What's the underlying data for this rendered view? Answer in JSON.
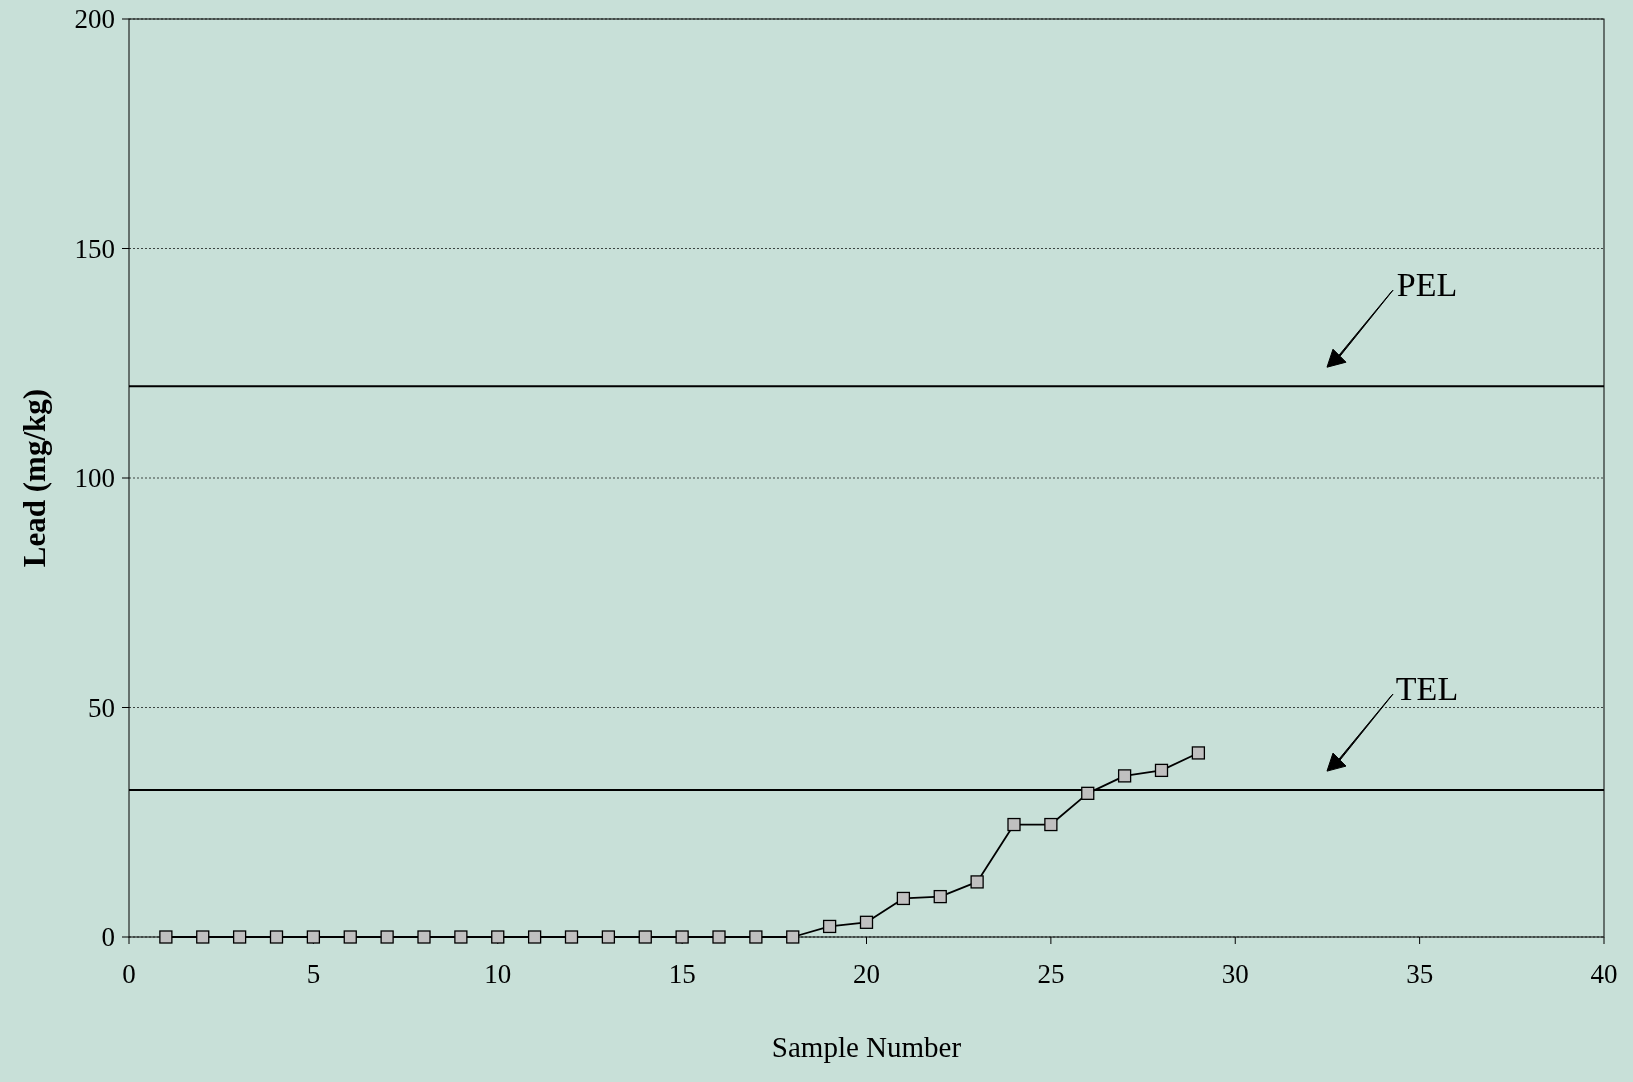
{
  "chart_data": {
    "type": "line",
    "xlabel": "Sample Number",
    "ylabel": "Lead (mg/kg)",
    "x": [
      1,
      2,
      3,
      4,
      5,
      6,
      7,
      8,
      9,
      10,
      11,
      12,
      13,
      14,
      15,
      16,
      17,
      18,
      19,
      20,
      21,
      22,
      23,
      24,
      25,
      26,
      27,
      28,
      29
    ],
    "series": [
      {
        "color": "#000000",
        "values": [
          0,
          0,
          0,
          0,
          0,
          0,
          0,
          0,
          0,
          0,
          0,
          0,
          0,
          0,
          0,
          0,
          0,
          0,
          2.3,
          3.2,
          8.4,
          8.8,
          12,
          24.5,
          24.5,
          31.3,
          35.1,
          36.3,
          40.1
        ]
      }
    ],
    "marker": "square",
    "xlim": [
      0,
      40
    ],
    "xticks": [
      0,
      5,
      10,
      15,
      20,
      25,
      30,
      35,
      40
    ],
    "ylim": [
      0,
      200
    ],
    "yticks": [
      0,
      50,
      100,
      150,
      200
    ],
    "grid": "y",
    "ref_lines": [
      {
        "axis": "y",
        "value": 120,
        "label": "PEL",
        "color": "#000000"
      },
      {
        "axis": "y",
        "value": 32,
        "label": "TEL",
        "color": "#000000"
      }
    ]
  }
}
